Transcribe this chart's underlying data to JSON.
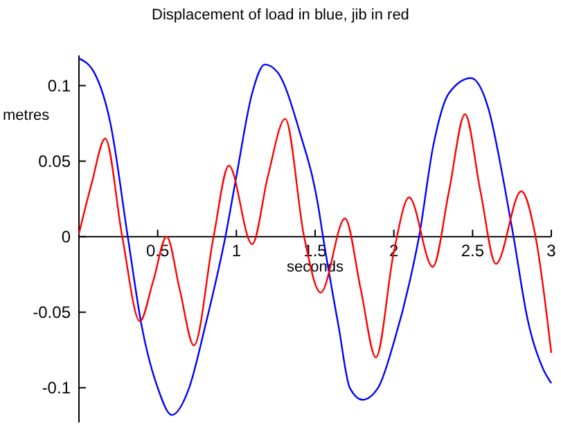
{
  "chart_data": {
    "type": "line",
    "title": "Displacement of load in blue, jib in red",
    "xlabel": "seconds",
    "ylabel": "metres",
    "xlim": [
      0,
      3
    ],
    "ylim": [
      -0.123,
      0.12
    ],
    "xticks": [
      {
        "value": 0.5,
        "label": "0.5"
      },
      1,
      {
        "value": 1.5,
        "label": "1.5"
      },
      2,
      {
        "value": 2.5,
        "label": "2.5"
      },
      3
    ],
    "yticks": [
      {
        "value": -0.1,
        "label": "-0.1"
      },
      {
        "value": -0.05,
        "label": "-0.05"
      },
      0,
      {
        "value": 0.05,
        "label": "0.05"
      },
      {
        "value": 0.1,
        "label": "0.1"
      }
    ],
    "grid": false,
    "line_style": "solid",
    "series": [
      {
        "color": "#0000ff",
        "x": [
          0,
          0.1,
          0.2,
          0.31,
          0.4,
          0.5,
          0.59,
          0.7,
          0.8,
          0.93,
          1.0,
          1.1,
          1.18,
          1.26,
          1.4,
          1.52,
          1.55,
          1.65,
          1.72,
          1.8,
          1.9,
          2.0,
          2.1,
          2.16,
          2.25,
          2.35,
          2.49,
          2.6,
          2.7,
          2.76,
          2.85,
          2.95,
          3
        ],
        "values": [
          0.118,
          0.108,
          0.075,
          0,
          -0.06,
          -0.1,
          -0.118,
          -0.1,
          -0.06,
          0,
          0.04,
          0.095,
          0.114,
          0.109,
          0.07,
          0.02,
          0,
          -0.06,
          -0.1,
          -0.108,
          -0.1,
          -0.07,
          -0.03,
          0,
          0.06,
          0.095,
          0.105,
          0.085,
          0.035,
          0,
          -0.055,
          -0.088,
          -0.097
        ]
      },
      {
        "color": "#ff0000",
        "x": [
          0,
          0.08,
          0.167,
          0.275,
          0.387,
          0.47,
          0.557,
          0.64,
          0.73,
          0.855,
          0.952,
          1.1,
          1.2,
          1.31,
          1.43,
          1.535,
          1.69,
          1.79,
          1.886,
          2.0,
          2.097,
          2.247,
          2.35,
          2.452,
          2.55,
          2.648,
          2.809,
          2.9,
          3
        ],
        "values": [
          0.002,
          0.035,
          0.065,
          0,
          -0.056,
          -0.03,
          0,
          -0.035,
          -0.072,
          0,
          0.047,
          -0.005,
          0.04,
          0.078,
          0,
          -0.037,
          0.012,
          -0.035,
          -0.08,
          -0.01,
          0.026,
          -0.02,
          0.03,
          0.081,
          0.03,
          -0.018,
          0.03,
          0,
          -0.077
        ]
      }
    ]
  }
}
